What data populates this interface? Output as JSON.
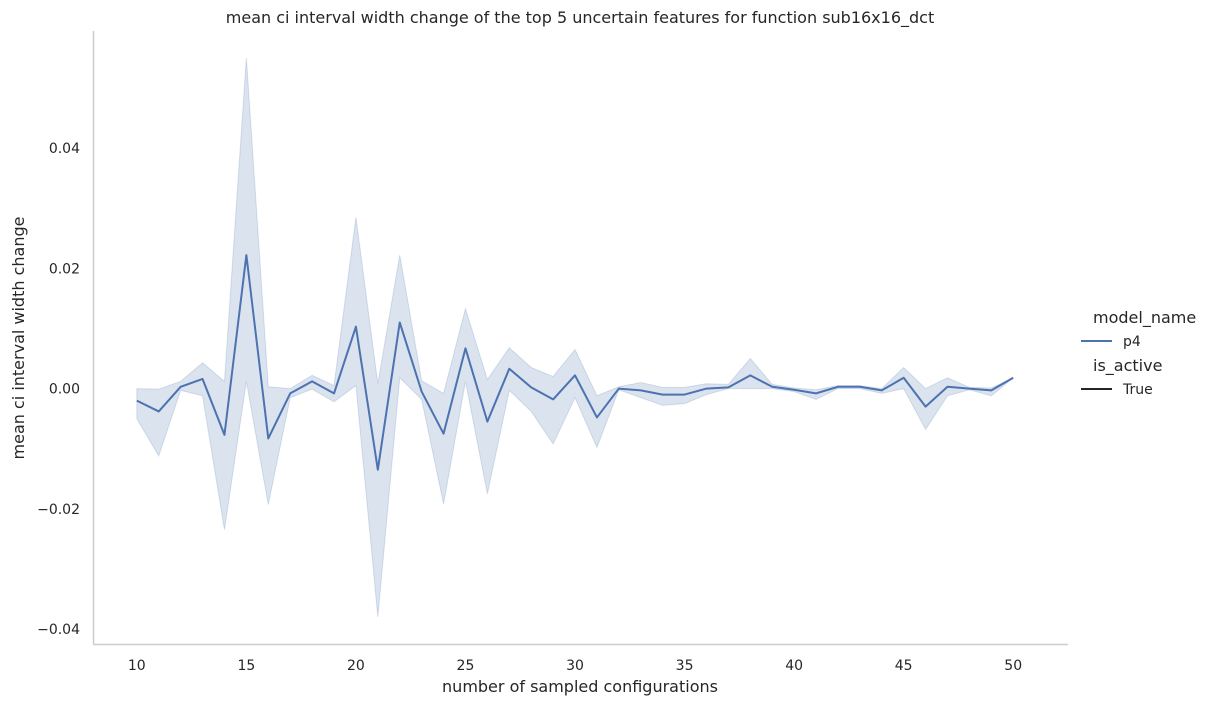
{
  "chart_data": {
    "type": "line",
    "title": "mean ci interval width change of the top 5 uncertain features for function sub16x16_dct",
    "xlabel": "number of sampled configurations",
    "ylabel": "mean ci interval width change",
    "xlim": [
      8,
      52.5
    ],
    "ylim": [
      -0.0425,
      0.0595
    ],
    "xticks": [
      10,
      15,
      20,
      25,
      30,
      35,
      40,
      45,
      50
    ],
    "yticks": [
      -0.04,
      -0.02,
      0.0,
      0.02,
      0.04
    ],
    "xtick_labels": [
      "10",
      "15",
      "20",
      "25",
      "30",
      "35",
      "40",
      "45",
      "50"
    ],
    "ytick_labels": [
      "−0.04",
      "−0.02",
      "0.00",
      "0.02",
      "0.04"
    ],
    "grid": false,
    "legend_placement": "right",
    "legend": {
      "hue_title": "model_name",
      "hue_entries": [
        "p4"
      ],
      "style_title": "is_active",
      "style_entries": [
        "True"
      ]
    },
    "colors": {
      "line": "#4c72b0",
      "band": "#4c72b0",
      "style_line": "#262626",
      "axis": "#cccccc"
    },
    "series": [
      {
        "name": "p4",
        "x": [
          10,
          11,
          12,
          13,
          14,
          15,
          16,
          17,
          18,
          19,
          20,
          21,
          22,
          23,
          24,
          25,
          26,
          27,
          28,
          29,
          30,
          31,
          32,
          33,
          34,
          35,
          36,
          37,
          38,
          39,
          40,
          41,
          42,
          43,
          44,
          45,
          46,
          47,
          48,
          49,
          50
        ],
        "y": [
          -0.002,
          -0.0038,
          0.0003,
          0.0016,
          -0.0077,
          0.0222,
          -0.0083,
          -0.0008,
          0.0012,
          -0.0008,
          0.0103,
          -0.0135,
          0.011,
          -0.0005,
          -0.0075,
          0.0067,
          -0.0055,
          0.0033,
          0.0002,
          -0.0018,
          0.0022,
          -0.0048,
          0.0,
          -0.0003,
          -0.001,
          -0.001,
          0.0,
          0.0002,
          0.0022,
          0.0003,
          -0.0002,
          -0.0008,
          0.0003,
          0.0003,
          -0.0003,
          0.0018,
          -0.003,
          0.0003,
          0.0,
          -0.0003,
          0.0018
        ],
        "ci_lower": [
          -0.005,
          -0.0112,
          -0.0003,
          -0.0012,
          -0.0235,
          0.0012,
          -0.0193,
          -0.0015,
          -0.0001,
          -0.0022,
          0.0005,
          -0.038,
          0.0018,
          -0.0018,
          -0.0192,
          0.0012,
          -0.0175,
          -0.0003,
          -0.0038,
          -0.0092,
          -0.0015,
          -0.0098,
          -0.0002,
          -0.0015,
          -0.0028,
          -0.0025,
          -0.001,
          0.0,
          0.0,
          0.0,
          -0.0005,
          -0.0018,
          0.0,
          0.0,
          -0.0008,
          0.0,
          -0.0068,
          -0.0012,
          -0.0002,
          -0.0012,
          0.0018
        ],
        "ci_upper": [
          0.0,
          -0.0001,
          0.0012,
          0.0043,
          0.0012,
          0.055,
          0.0003,
          0.0,
          0.0022,
          0.0005,
          0.0285,
          0.0008,
          0.0222,
          0.0013,
          -0.0008,
          0.0133,
          0.0015,
          0.0068,
          0.0035,
          0.002,
          0.0065,
          -0.0012,
          0.0003,
          0.001,
          0.0002,
          0.0002,
          0.0008,
          0.0007,
          0.005,
          0.0007,
          0.0001,
          -0.0002,
          0.0005,
          0.0005,
          0.0,
          0.0035,
          0.0,
          0.0018,
          0.0002,
          0.0001,
          0.0018
        ]
      }
    ]
  }
}
